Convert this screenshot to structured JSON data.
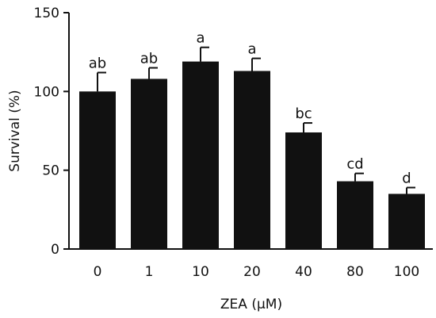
{
  "chart_data": {
    "type": "bar",
    "categories": [
      "0",
      "1",
      "10",
      "20",
      "40",
      "80",
      "100"
    ],
    "series": [
      {
        "values": [
          100,
          108,
          119,
          113,
          74,
          43,
          35
        ],
        "error": [
          12,
          7,
          9,
          8,
          6,
          5,
          4
        ],
        "significance": [
          "ab",
          "ab",
          "a",
          "a",
          "bc",
          "cd",
          "d"
        ]
      }
    ],
    "xlabel": "ZEA (μM)",
    "ylabel": "Survival (%)",
    "ylim": [
      0,
      150
    ],
    "yticks": [
      0,
      50,
      100,
      150
    ],
    "bar_color": "#111111",
    "grid": false
  }
}
